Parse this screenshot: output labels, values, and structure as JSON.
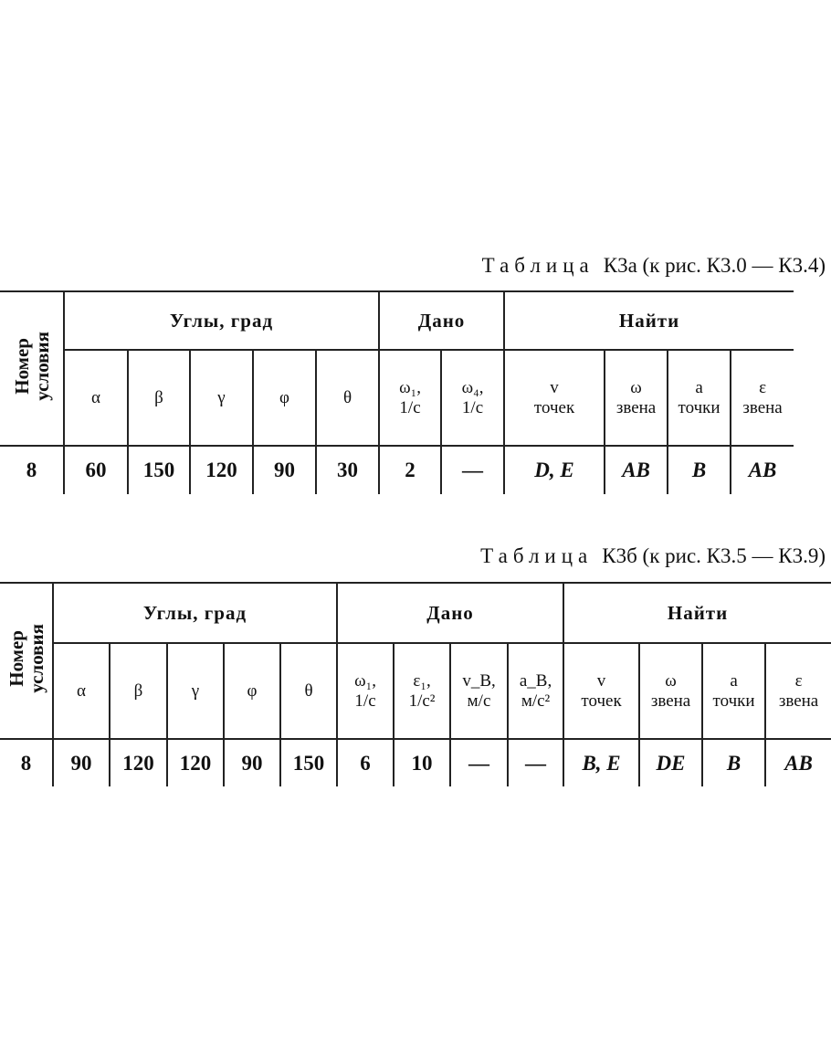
{
  "tables": [
    {
      "caption": {
        "label": "Таблица",
        "text": "К3а (к рис. К3.0 — К3.4)"
      },
      "row_header": "Номер\nусловия",
      "groups": [
        {
          "label": "Углы, град",
          "columns": [
            "α",
            "β",
            "γ",
            "φ",
            "θ"
          ]
        },
        {
          "label": "Дано",
          "columns": [
            "ω₁,\n1/с",
            "ω₄,\n1/с"
          ]
        },
        {
          "label": "Найти",
          "columns": [
            "v\nточек",
            "ω\nзвена",
            "a\nточки",
            "ε\nзвена"
          ]
        }
      ],
      "rows": [
        [
          "8",
          "60",
          "150",
          "120",
          "90",
          "30",
          "2",
          "—",
          "D, E",
          "AB",
          "B",
          "AB"
        ]
      ]
    },
    {
      "caption": {
        "label": "Таблица",
        "text": "К3б (к рис. К3.5 — К3.9)"
      },
      "row_header": "Номер\nусловия",
      "groups": [
        {
          "label": "Углы, град",
          "columns": [
            "α",
            "β",
            "γ",
            "φ",
            "θ"
          ]
        },
        {
          "label": "Дано",
          "columns": [
            "ω₁,\n1/с",
            "ε₁,\n1/с²",
            "v_B,\nм/с",
            "a_B,\nм/с²"
          ]
        },
        {
          "label": "Найти",
          "columns": [
            "v\nточек",
            "ω\nзвена",
            "a\nточки",
            "ε\nзвена"
          ]
        }
      ],
      "rows": [
        [
          "8",
          "90",
          "120",
          "120",
          "90",
          "150",
          "6",
          "10",
          "—",
          "—",
          "B, E",
          "DE",
          "B",
          "AB"
        ]
      ]
    }
  ]
}
